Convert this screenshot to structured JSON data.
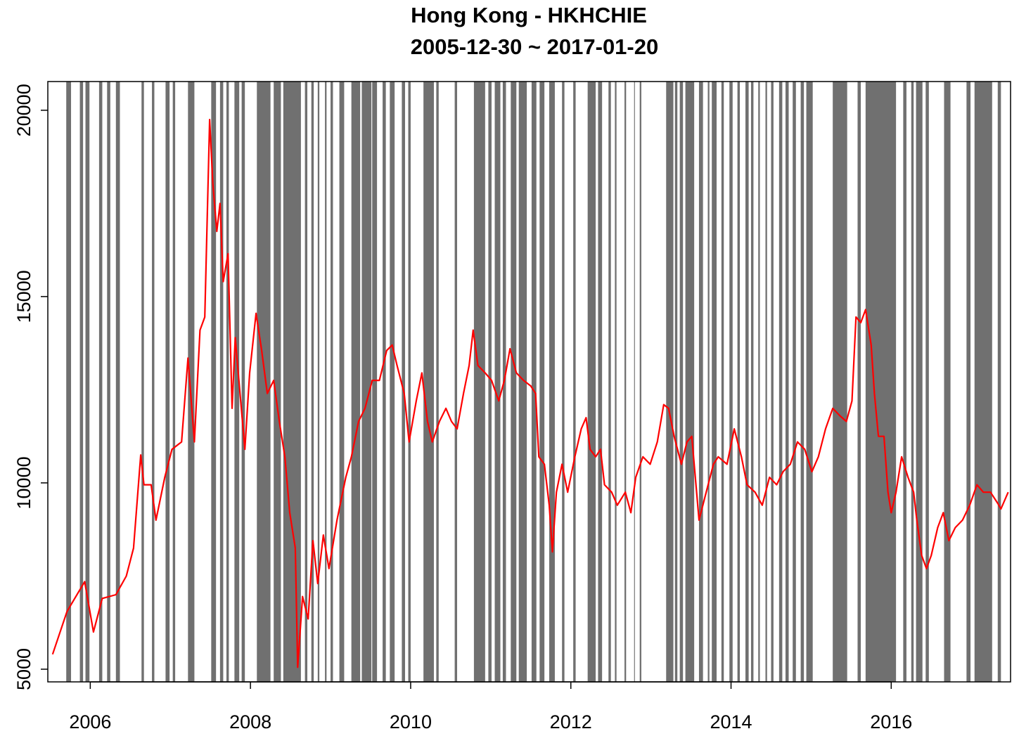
{
  "chart_data": {
    "type": "line",
    "title": "Hong Kong - HKHCHIE",
    "subtitle": "2005-12-30 ~ 2017-01-20",
    "color": "#ff0000",
    "shade_color": "#707070",
    "xlim": [
      2005.47,
      2017.49
    ],
    "ylim": [
      4660,
      20770
    ],
    "xticks": [
      2006,
      2008,
      2010,
      2012,
      2014,
      2016
    ],
    "yticks": [
      5000,
      10000,
      15000,
      20000
    ],
    "x": [
      2005.53,
      2005.71,
      2005.93,
      2006.04,
      2006.15,
      2006.32,
      2006.45,
      2006.54,
      2006.63,
      2006.67,
      2006.76,
      2006.82,
      2006.93,
      2007.02,
      2007.14,
      2007.22,
      2007.3,
      2007.37,
      2007.43,
      2007.49,
      2007.53,
      2007.58,
      2007.62,
      2007.66,
      2007.72,
      2007.77,
      2007.81,
      2007.87,
      2007.93,
      2007.99,
      2008.07,
      2008.14,
      2008.21,
      2008.29,
      2008.36,
      2008.43,
      2008.49,
      2008.56,
      2008.59,
      2008.65,
      2008.72,
      2008.78,
      2008.84,
      2008.91,
      2008.98,
      2009.08,
      2009.19,
      2009.26,
      2009.35,
      2009.43,
      2009.52,
      2009.61,
      2009.7,
      2009.77,
      2009.83,
      2009.92,
      2009.98,
      2010.07,
      2010.14,
      2010.21,
      2010.27,
      2010.36,
      2010.44,
      2010.51,
      2010.58,
      2010.66,
      2010.73,
      2010.78,
      2010.84,
      2010.93,
      2011.01,
      2011.1,
      2011.17,
      2011.24,
      2011.32,
      2011.41,
      2011.5,
      2011.56,
      2011.6,
      2011.67,
      2011.73,
      2011.77,
      2011.82,
      2011.89,
      2011.96,
      2012.05,
      2012.13,
      2012.19,
      2012.24,
      2012.31,
      2012.37,
      2012.42,
      2012.51,
      2012.58,
      2012.68,
      2012.75,
      2012.81,
      2012.9,
      2012.99,
      2013.08,
      2013.16,
      2013.22,
      2013.29,
      2013.38,
      2013.45,
      2013.51,
      2013.6,
      2013.69,
      2013.78,
      2013.84,
      2013.95,
      2014.04,
      2014.13,
      2014.2,
      2014.3,
      2014.39,
      2014.48,
      2014.57,
      2014.65,
      2014.74,
      2014.83,
      2014.92,
      2015.01,
      2015.09,
      2015.18,
      2015.27,
      2015.36,
      2015.44,
      2015.51,
      2015.56,
      2015.62,
      2015.68,
      2015.75,
      2015.79,
      2015.84,
      2015.91,
      2015.96,
      2016.0,
      2016.06,
      2016.13,
      2016.21,
      2016.28,
      2016.32,
      2016.38,
      2016.44,
      2016.5,
      2016.58,
      2016.65,
      2016.72,
      2016.8,
      2016.89,
      2016.98,
      2017.07,
      2017.15,
      2017.24,
      2017.33,
      2017.37,
      2017.46
    ],
    "values": [
      5400,
      6550,
      7350,
      6000,
      6900,
      7000,
      7500,
      8250,
      10750,
      9950,
      9950,
      9000,
      10150,
      10900,
      11100,
      13350,
      11100,
      14100,
      14450,
      19750,
      18050,
      16750,
      17500,
      15400,
      16150,
      12000,
      13900,
      12400,
      10900,
      12950,
      14550,
      13550,
      12400,
      12750,
      11650,
      10700,
      9200,
      8250,
      5050,
      6950,
      6350,
      8450,
      7300,
      8600,
      7700,
      9000,
      10150,
      10700,
      11650,
      12000,
      12750,
      12750,
      13550,
      13700,
      13150,
      12400,
      11100,
      12200,
      12950,
      11650,
      11100,
      11650,
      12000,
      11650,
      11450,
      12400,
      13150,
      14100,
      13150,
      12950,
      12750,
      12200,
      12750,
      13600,
      12950,
      12750,
      12600,
      12400,
      10700,
      10500,
      9400,
      8150,
      9750,
      10500,
      9750,
      10700,
      11450,
      11750,
      10900,
      10700,
      10900,
      9950,
      9750,
      9400,
      9750,
      9200,
      10150,
      10700,
      10500,
      11100,
      12100,
      12000,
      11250,
      10500,
      11100,
      11250,
      9000,
      9750,
      10500,
      10700,
      10500,
      11450,
      10700,
      9950,
      9750,
      9400,
      10150,
      9950,
      10300,
      10500,
      11100,
      10900,
      10300,
      10700,
      11450,
      12000,
      11800,
      11650,
      12200,
      14450,
      14300,
      14650,
      13700,
      12400,
      11250,
      11250,
      9750,
      9200,
      9750,
      10700,
      10150,
      9750,
      9000,
      8050,
      7700,
      8050,
      8800,
      9200,
      8450,
      8800,
      9000,
      9400,
      9950,
      9750,
      9750,
      9450,
      9300,
      9750
    ],
    "shaded": [
      [
        2005.7,
        2005.76
      ],
      [
        2005.87,
        2005.91
      ],
      [
        2005.94,
        2005.99
      ],
      [
        2006.11,
        2006.15
      ],
      [
        2006.21,
        2006.25
      ],
      [
        2006.32,
        2006.37
      ],
      [
        2006.64,
        2006.67
      ],
      [
        2006.77,
        2006.8
      ],
      [
        2006.94,
        2006.99
      ],
      [
        2007.03,
        2007.06
      ],
      [
        2007.22,
        2007.3
      ],
      [
        2007.51,
        2007.57
      ],
      [
        2007.62,
        2007.66
      ],
      [
        2007.7,
        2007.73
      ],
      [
        2007.8,
        2007.86
      ],
      [
        2007.89,
        2007.93
      ],
      [
        2008.08,
        2008.25
      ],
      [
        2008.29,
        2008.38
      ],
      [
        2008.41,
        2008.63
      ],
      [
        2008.68,
        2008.71
      ],
      [
        2008.76,
        2008.79
      ],
      [
        2008.84,
        2008.86
      ],
      [
        2008.93,
        2008.95
      ],
      [
        2009.0,
        2009.03
      ],
      [
        2009.11,
        2009.17
      ],
      [
        2009.26,
        2009.37
      ],
      [
        2009.39,
        2009.51
      ],
      [
        2009.52,
        2009.58
      ],
      [
        2009.65,
        2009.69
      ],
      [
        2009.74,
        2009.8
      ],
      [
        2009.89,
        2009.93
      ],
      [
        2009.97,
        2010.0
      ],
      [
        2010.16,
        2010.29
      ],
      [
        2010.32,
        2010.35
      ],
      [
        2010.55,
        2010.58
      ],
      [
        2010.79,
        2010.93
      ],
      [
        2010.97,
        2011.01
      ],
      [
        2011.05,
        2011.12
      ],
      [
        2011.15,
        2011.19
      ],
      [
        2011.25,
        2011.32
      ],
      [
        2011.35,
        2011.45
      ],
      [
        2011.51,
        2011.57
      ],
      [
        2011.61,
        2011.67
      ],
      [
        2011.73,
        2011.8
      ],
      [
        2011.89,
        2011.92
      ],
      [
        2012.03,
        2012.06
      ],
      [
        2012.21,
        2012.31
      ],
      [
        2012.34,
        2012.39
      ],
      [
        2012.47,
        2012.5
      ],
      [
        2012.55,
        2012.57
      ],
      [
        2012.67,
        2012.69
      ],
      [
        2012.79,
        2012.8
      ],
      [
        2012.86,
        2012.88
      ],
      [
        2013.19,
        2013.28
      ],
      [
        2013.3,
        2013.33
      ],
      [
        2013.36,
        2013.4
      ],
      [
        2013.43,
        2013.54
      ],
      [
        2013.6,
        2013.65
      ],
      [
        2013.71,
        2013.73
      ],
      [
        2013.76,
        2013.82
      ],
      [
        2013.88,
        2013.91
      ],
      [
        2013.98,
        2014.02
      ],
      [
        2014.08,
        2014.11
      ],
      [
        2014.18,
        2014.22
      ],
      [
        2014.25,
        2014.28
      ],
      [
        2014.34,
        2014.36
      ],
      [
        2014.43,
        2014.45
      ],
      [
        2014.5,
        2014.53
      ],
      [
        2014.6,
        2014.64
      ],
      [
        2014.68,
        2014.72
      ],
      [
        2014.77,
        2014.81
      ],
      [
        2014.87,
        2014.91
      ],
      [
        2014.94,
        2015.02
      ],
      [
        2015.27,
        2015.45
      ],
      [
        2015.58,
        2015.62
      ],
      [
        2015.68,
        2016.06
      ],
      [
        2016.15,
        2016.19
      ],
      [
        2016.25,
        2016.28
      ],
      [
        2016.31,
        2016.39
      ],
      [
        2016.43,
        2016.47
      ],
      [
        2016.66,
        2016.74
      ],
      [
        2016.94,
        2016.99
      ],
      [
        2017.04,
        2017.26
      ],
      [
        2017.33,
        2017.37
      ]
    ]
  }
}
